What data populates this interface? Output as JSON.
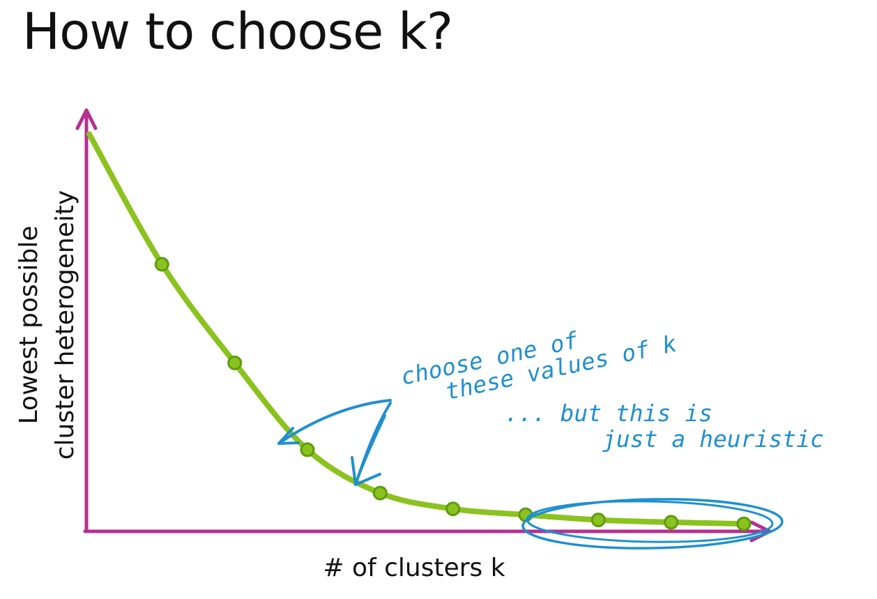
{
  "slide": {
    "title": "How to choose k?"
  },
  "chart_data": {
    "type": "line",
    "title": "",
    "xlabel": "# of clusters k",
    "ylabel_lines": [
      "Lowest possible",
      "cluster heterogeneity"
    ],
    "x": [
      1,
      2,
      3,
      4,
      5,
      6,
      7,
      8,
      9,
      10
    ],
    "values": [
      100,
      67,
      42,
      20,
      9,
      5,
      3.5,
      2.2,
      1.6,
      1.2
    ],
    "point_markers_from_index": 1,
    "ylim": [
      0,
      105
    ],
    "grid": false,
    "colors": {
      "axis": "#b5308f",
      "line": "#8cc21f",
      "marker_fill": "#8cc21f",
      "marker_edge": "#5e9a0e",
      "annotation": "#1f8fcf"
    }
  },
  "annotations": {
    "note1_line1": "choose one of",
    "note1_line2": "these values of k",
    "note2_line1": "... but this is",
    "note2_line2": "just a heuristic"
  }
}
